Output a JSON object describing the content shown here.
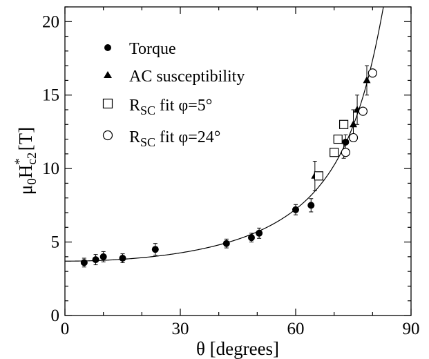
{
  "chart_data": {
    "type": "scatter",
    "xlabel": "θ [degrees]",
    "ylabel": {
      "base": "μ",
      "sub1": "0",
      "mid": "H",
      "sub2": "c2",
      "sup": "*",
      "unit": " [T]"
    },
    "xlim": [
      0,
      90
    ],
    "ylim": [
      0,
      21
    ],
    "xticks": [
      0,
      30,
      60,
      90
    ],
    "yticks": [
      0,
      5,
      10,
      15,
      20
    ],
    "xtick_labels": [
      "0",
      "30",
      "60",
      "90"
    ],
    "ytick_labels": [
      "0",
      "5",
      "10",
      "15",
      "20"
    ],
    "grid": false,
    "legend_position": "top-left",
    "series": [
      {
        "name": "Torque",
        "marker": "filled-circle",
        "points": [
          {
            "x": 5,
            "y": 3.6,
            "err": 0.3
          },
          {
            "x": 8,
            "y": 3.8,
            "err": 0.35
          },
          {
            "x": 10,
            "y": 4.0,
            "err": 0.35
          },
          {
            "x": 15,
            "y": 3.9,
            "err": 0.3
          },
          {
            "x": 23.5,
            "y": 4.5,
            "err": 0.4
          },
          {
            "x": 42,
            "y": 4.9,
            "err": 0.3
          },
          {
            "x": 48.5,
            "y": 5.3,
            "err": 0.3
          },
          {
            "x": 50.5,
            "y": 5.6,
            "err": 0.35
          },
          {
            "x": 60,
            "y": 7.2,
            "err": 0.35
          },
          {
            "x": 64,
            "y": 7.5,
            "err": 0.45
          },
          {
            "x": 73,
            "y": 11.8,
            "err": 0.5
          }
        ]
      },
      {
        "name": "AC susceptibility",
        "marker": "filled-triangle",
        "points": [
          {
            "x": 65,
            "y": 9.5,
            "err": 1.0
          },
          {
            "x": 72.5,
            "y": 11.2,
            "err": 0.5
          },
          {
            "x": 75,
            "y": 13.0,
            "err": 1.0
          },
          {
            "x": 76,
            "y": 14.0,
            "err": 1.0
          },
          {
            "x": 78.5,
            "y": 16.0,
            "err": 1.0
          }
        ]
      },
      {
        "name": {
          "pre": "R",
          "sub": "SC",
          "post": " fit φ=5°"
        },
        "marker": "open-square",
        "points": [
          {
            "x": 66,
            "y": 9.5,
            "err": 0
          },
          {
            "x": 70,
            "y": 11.1,
            "err": 0
          },
          {
            "x": 71,
            "y": 12.0,
            "err": 0
          },
          {
            "x": 72.5,
            "y": 13.0,
            "err": 0
          }
        ]
      },
      {
        "name": {
          "pre": "R",
          "sub": "SC",
          "post": " fit φ=24°"
        },
        "marker": "open-circle",
        "points": [
          {
            "x": 73,
            "y": 11.1,
            "err": 0
          },
          {
            "x": 75,
            "y": 12.1,
            "err": 0
          },
          {
            "x": 77.5,
            "y": 13.9,
            "err": 0
          },
          {
            "x": 80,
            "y": 16.5,
            "err": 0
          }
        ]
      }
    ],
    "fit_curve": {
      "style": "solid",
      "Hc2_parallel": 3.7,
      "anisotropy": 8
    }
  }
}
